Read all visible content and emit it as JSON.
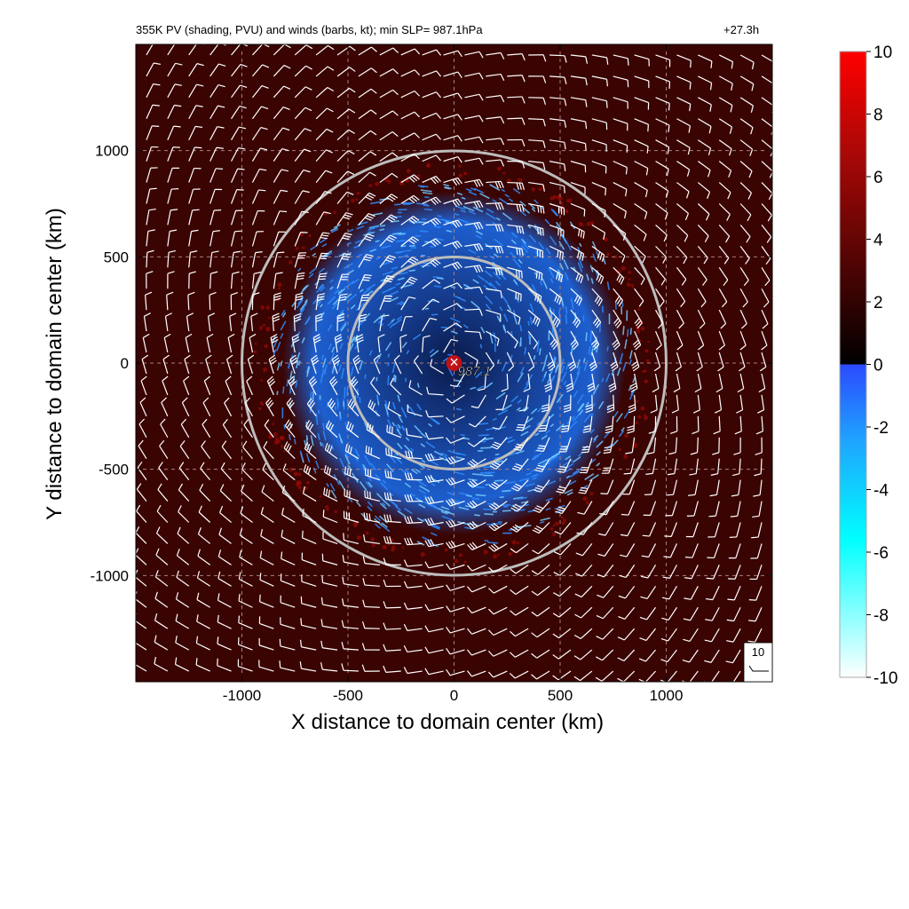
{
  "chart_data": {
    "type": "heatmap",
    "title": "355K PV (shading, PVU) and winds (barbs, kt); min SLP=  987.1hPa",
    "forecast_time": "+27.3h",
    "xlabel": "X distance to domain center (km)",
    "ylabel": "Y distance to domain center (km)",
    "xlim": [
      -1500,
      1500
    ],
    "ylim": [
      -1500,
      1500
    ],
    "xticks": [
      -1000,
      -500,
      0,
      500,
      1000
    ],
    "yticks": [
      -1000,
      -500,
      0,
      500,
      1000
    ],
    "xtick_labels": [
      "-1000",
      "-500",
      "0",
      "500",
      "1000"
    ],
    "ytick_labels": [
      "-1000",
      "-500",
      "0",
      "500",
      "1000"
    ],
    "grid": true,
    "colorbar": {
      "range": [
        -10,
        10
      ],
      "ticks": [
        10,
        8,
        6,
        4,
        2,
        0,
        -2,
        -4,
        -6,
        -8,
        -10
      ],
      "tick_labels": [
        "10",
        "8",
        "6",
        "4",
        "2",
        "0",
        "-2",
        "-4",
        "-6",
        "-8",
        "-10"
      ],
      "positive_colors": [
        "#000000",
        "#3a0402",
        "#8a0a05",
        "#ff0000"
      ],
      "negative_colors": [
        "#2b4bff",
        "#1fa3ff",
        "#00ffff",
        "#ffffff"
      ]
    },
    "center_marker": {
      "x": 0,
      "y": 0,
      "label": "987.1",
      "symbol": "×"
    },
    "range_circles_km": [
      500,
      1000
    ],
    "barb_reference": {
      "label": "10",
      "speed_kt": 10
    },
    "barb_spacing_km": 100
  },
  "colors": {
    "background_field": "#3a0402",
    "negative_pv": "#1e7cf0",
    "circle": "#bdbdbd",
    "grid": "#a88080",
    "barb": "#ffffff"
  }
}
